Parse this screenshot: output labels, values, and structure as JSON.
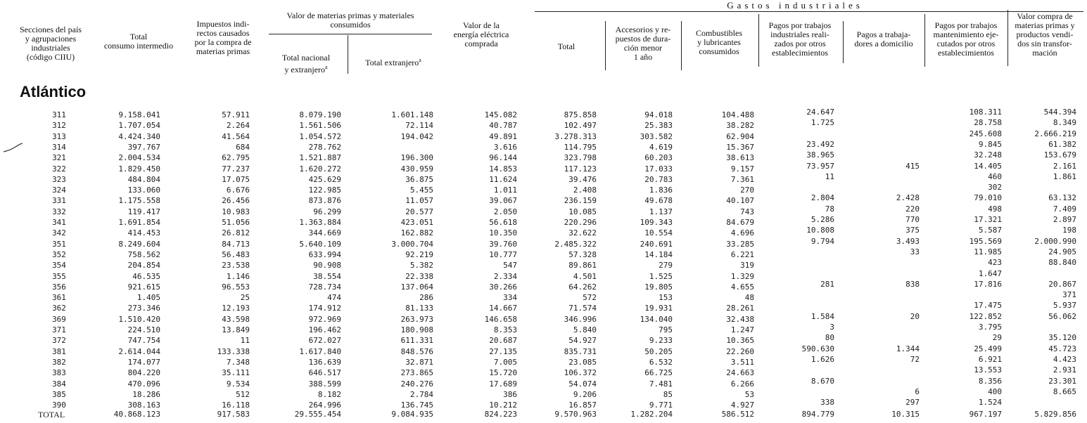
{
  "headers": {
    "secciones": "Secciones del país\ny agrupaciones\nindustriales\n(código CIIU)",
    "total_ci": "Total\nconsumo intermedio",
    "impuestos": "Impuestos indi-\nrectos causados\npor la compra de\nmaterias primas",
    "materias_group": "Valor de materias primas y materiales\nconsumidos",
    "total_nacional": "Total nacional\ny extranjero",
    "total_extranjero": "Total extranjero",
    "footnote_mark": "a",
    "energia": "Valor de la\nenergía eléctrica\ncomprada",
    "gastos_group": "Gastos industriales",
    "total_gastos": "Total",
    "accesorios": "Accesorios y re-\npuestos de dura-\nción menor\n1 año",
    "combustibles": "Combustibles\ny lubricantes\nconsumidos",
    "pagos_otros": "Pagos por trabajos\nindustriales reali-\nzados por otros\nestablecimientos",
    "pagos_domicilio": "Pagos a trabaja-\ndores a domicilio",
    "pagos_mant": "Pagos por trabajos\nmantenimiento eje-\ncutados por otros\nestablecimientos",
    "valor_compra": "Valor compra de\nmaterias primas y\nproductos vendi-\ndos sin transfor-\nmación"
  },
  "section_title": "Atlántico",
  "rows": [
    {
      "code": "311",
      "v": [
        "9.158.041",
        "57.911",
        "8.079.190",
        "1.601.148",
        "145.082",
        "875.858",
        "94.018",
        "104.488",
        "24.647",
        "",
        "108.311",
        "544.394"
      ]
    },
    {
      "code": "312",
      "v": [
        "1.707.054",
        "2.264",
        "1.561.506",
        "72.114",
        "40.787",
        "102.497",
        "25.383",
        "38.282",
        "1.725",
        "",
        "28.758",
        "8.349"
      ]
    },
    {
      "code": "313",
      "v": [
        "4.424.340",
        "41.564",
        "1.054.572",
        "194.042",
        "49.891",
        "3.278.313",
        "303.582",
        "62.904",
        "",
        "",
        "245.608",
        "2.666.219"
      ]
    },
    {
      "code": "314",
      "v": [
        "397.767",
        "684",
        "278.762",
        "",
        "3.616",
        "114.795",
        "4.619",
        "15.367",
        "23.492",
        "",
        "9.845",
        "61.382"
      ]
    },
    {
      "code": "321",
      "v": [
        "2.004.534",
        "62.795",
        "1.521.887",
        "196.300",
        "96.144",
        "323.798",
        "60.203",
        "38.613",
        "38.965",
        "",
        "32.248",
        "153.679"
      ]
    },
    {
      "code": "322",
      "v": [
        "1.829.450",
        "77.237",
        "1.620.272",
        "430.959",
        "14.853",
        "117.123",
        "17.033",
        "9.157",
        "73.957",
        "415",
        "14.405",
        "2.161"
      ]
    },
    {
      "code": "323",
      "v": [
        "484.804",
        "17.075",
        "425.629",
        "36.875",
        "11.624",
        "39.476",
        "20.783",
        "7.361",
        "11",
        "",
        "460",
        "1.861"
      ]
    },
    {
      "code": "324",
      "v": [
        "133.060",
        "6.676",
        "122.985",
        "5.455",
        "1.011",
        "2.408",
        "1.836",
        "270",
        "",
        "",
        "302",
        ""
      ]
    },
    {
      "code": "331",
      "v": [
        "1.175.558",
        "26.456",
        "873.876",
        "11.057",
        "39.067",
        "236.159",
        "49.678",
        "40.107",
        "2.804",
        "2.428",
        "79.010",
        "63.132"
      ]
    },
    {
      "code": "332",
      "v": [
        "119.417",
        "10.983",
        "96.299",
        "20.577",
        "2.050",
        "10.085",
        "1.137",
        "743",
        "78",
        "220",
        "498",
        "7.409"
      ]
    },
    {
      "code": "341",
      "v": [
        "1.691.854",
        "51.056",
        "1.363.884",
        "423.051",
        "56.618",
        "220.296",
        "109.343",
        "84.679",
        "5.286",
        "770",
        "17.321",
        "2.897"
      ]
    },
    {
      "code": "342",
      "v": [
        "414.453",
        "26.812",
        "344.669",
        "162.882",
        "10.350",
        "32.622",
        "10.554",
        "4.696",
        "10.808",
        "375",
        "5.587",
        "198"
      ]
    },
    {
      "code": "351",
      "v": [
        "8.249.604",
        "84.713",
        "5.640.109",
        "3.000.704",
        "39.760",
        "2.485.322",
        "240.691",
        "33.285",
        "9.794",
        "3.493",
        "195.569",
        "2.000.990"
      ]
    },
    {
      "code": "352",
      "v": [
        "758.562",
        "56.483",
        "633.994",
        "92.219",
        "10.777",
        "57.328",
        "14.184",
        "6.221",
        "",
        "33",
        "11.985",
        "24.905"
      ]
    },
    {
      "code": "354",
      "v": [
        "204.854",
        "23.538",
        "90.908",
        "5.382",
        "547",
        "89.861",
        "279",
        "319",
        "",
        "",
        "423",
        "88.840"
      ]
    },
    {
      "code": "355",
      "v": [
        "46.535",
        "1.146",
        "38.554",
        "22.338",
        "2.334",
        "4.501",
        "1.525",
        "1.329",
        "",
        "",
        "1.647",
        ""
      ]
    },
    {
      "code": "356",
      "v": [
        "921.615",
        "96.553",
        "728.734",
        "137.064",
        "30.266",
        "64.262",
        "19.805",
        "4.655",
        "281",
        "838",
        "17.816",
        "20.867"
      ]
    },
    {
      "code": "361",
      "v": [
        "1.405",
        "25",
        "474",
        "286",
        "334",
        "572",
        "153",
        "48",
        "",
        "",
        "",
        "371"
      ]
    },
    {
      "code": "362",
      "v": [
        "273.346",
        "12.193",
        "174.912",
        "81.133",
        "14.667",
        "71.574",
        "19.931",
        "28.261",
        "",
        "",
        "17.475",
        "5.937"
      ]
    },
    {
      "code": "369",
      "v": [
        "1.510.420",
        "43.598",
        "972.969",
        "263.973",
        "146.658",
        "346.996",
        "134.040",
        "32.438",
        "1.584",
        "20",
        "122.852",
        "56.062"
      ]
    },
    {
      "code": "371",
      "v": [
        "224.510",
        "13.849",
        "196.462",
        "180.908",
        "8.353",
        "5.840",
        "795",
        "1.247",
        "3",
        "",
        "3.795",
        ""
      ]
    },
    {
      "code": "372",
      "v": [
        "747.754",
        "11",
        "672.027",
        "611.331",
        "20.687",
        "54.927",
        "9.233",
        "10.365",
        "80",
        "",
        "29",
        "35.120"
      ]
    },
    {
      "code": "381",
      "v": [
        "2.614.044",
        "133.338",
        "1.617.840",
        "848.576",
        "27.135",
        "835.731",
        "50.205",
        "22.260",
        "590.630",
        "1.344",
        "25.499",
        "45.723"
      ]
    },
    {
      "code": "382",
      "v": [
        "174.077",
        "7.348",
        "136.639",
        "32.871",
        "7.005",
        "23.085",
        "6.532",
        "3.511",
        "1.626",
        "72",
        "6.921",
        "4.423"
      ]
    },
    {
      "code": "383",
      "v": [
        "804.220",
        "35.111",
        "646.517",
        "273.865",
        "15.720",
        "106.372",
        "66.725",
        "24.663",
        "",
        "",
        "13.553",
        "2.931"
      ]
    },
    {
      "code": "384",
      "v": [
        "470.096",
        "9.534",
        "388.599",
        "240.276",
        "17.689",
        "54.074",
        "7.481",
        "6.266",
        "8.670",
        "",
        "8.356",
        "23.301"
      ]
    },
    {
      "code": "385",
      "v": [
        "18.286",
        "512",
        "8.182",
        "2.784",
        "386",
        "9.206",
        "85",
        "53",
        "",
        "6",
        "400",
        "8.665"
      ]
    },
    {
      "code": "390",
      "v": [
        "308.163",
        "16.118",
        "264.996",
        "136.745",
        "10.212",
        "16.857",
        "9.771",
        "4.927",
        "338",
        "297",
        "1.524",
        ""
      ]
    }
  ],
  "total": {
    "label": "TOTAL",
    "v": [
      "40.868.123",
      "917.583",
      "29.555.454",
      "9.084.935",
      "824.223",
      "9.570.963",
      "1.282.204",
      "586.512",
      "894.779",
      "10.315",
      "967.197",
      "5.829.856"
    ]
  }
}
